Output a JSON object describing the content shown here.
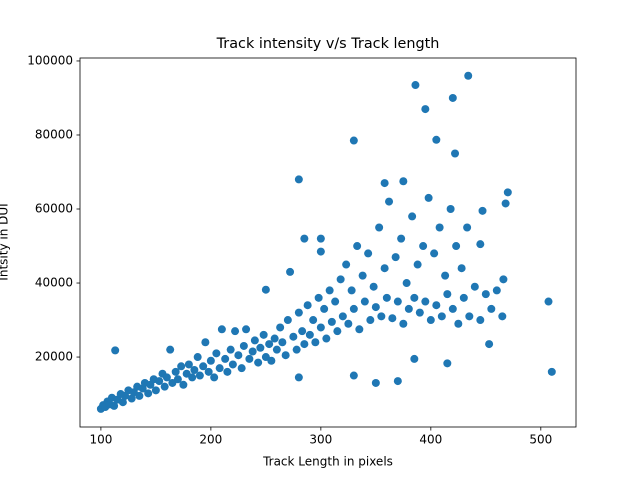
{
  "chart_data": {
    "type": "scatter",
    "title": "Track intensity v/s Track length",
    "x_label": "Track Length in pixels",
    "y_label": "Intsity in DUI",
    "color": "#1f77b4",
    "xlim": [
      81,
      532
    ],
    "ylim": [
      1100,
      100800
    ],
    "xticks": [
      100,
      200,
      300,
      400,
      500
    ],
    "yticks": [
      20000,
      40000,
      60000,
      80000,
      100000
    ],
    "x": [
      100,
      102,
      104,
      106,
      108,
      110,
      112,
      115,
      118,
      120,
      122,
      125,
      128,
      130,
      133,
      135,
      138,
      140,
      143,
      145,
      148,
      150,
      153,
      156,
      158,
      160,
      163,
      165,
      168,
      170,
      173,
      175,
      178,
      180,
      183,
      185,
      188,
      190,
      193,
      195,
      198,
      200,
      203,
      205,
      208,
      210,
      213,
      215,
      218,
      220,
      222,
      225,
      228,
      230,
      232,
      235,
      238,
      240,
      243,
      245,
      248,
      250,
      253,
      255,
      258,
      260,
      263,
      265,
      268,
      270,
      272,
      275,
      278,
      280,
      283,
      285,
      288,
      290,
      293,
      295,
      298,
      300,
      303,
      305,
      308,
      310,
      313,
      315,
      318,
      320,
      323,
      325,
      328,
      330,
      333,
      335,
      338,
      340,
      343,
      345,
      348,
      350,
      353,
      355,
      358,
      360,
      362,
      365,
      368,
      370,
      373,
      375,
      378,
      380,
      383,
      385,
      388,
      390,
      393,
      395,
      398,
      400,
      403,
      405,
      408,
      410,
      413,
      415,
      418,
      420,
      423,
      425,
      428,
      430,
      433,
      435,
      440,
      445,
      450,
      455,
      460,
      465,
      358,
      375,
      386,
      395,
      420,
      434,
      330,
      405,
      422,
      280,
      470,
      468,
      507,
      510,
      453,
      113,
      250,
      350,
      370,
      330,
      280,
      415,
      385,
      466,
      445,
      447,
      285,
      300,
      300
    ],
    "y": [
      6000,
      7000,
      6500,
      8000,
      7200,
      9000,
      6800,
      8500,
      10000,
      7800,
      9500,
      11000,
      8800,
      10500,
      12000,
      9500,
      11500,
      13000,
      10200,
      12500,
      14000,
      11000,
      13500,
      15500,
      12000,
      14500,
      22000,
      13000,
      16000,
      14000,
      17500,
      12500,
      15500,
      18000,
      14500,
      16500,
      20000,
      15000,
      17500,
      24000,
      16000,
      19000,
      14500,
      21000,
      17000,
      27500,
      19500,
      16000,
      22000,
      18000,
      27000,
      20500,
      17000,
      23000,
      27500,
      19500,
      21500,
      24500,
      18500,
      22500,
      26000,
      20000,
      23500,
      19000,
      25000,
      22000,
      28000,
      24000,
      20500,
      30000,
      43000,
      25500,
      22000,
      32000,
      27000,
      23500,
      34000,
      26000,
      30000,
      24000,
      36000,
      28000,
      33000,
      25000,
      38000,
      29500,
      35000,
      27000,
      41000,
      31000,
      45000,
      29000,
      38000,
      33000,
      50000,
      27500,
      42000,
      35000,
      48000,
      30000,
      39000,
      33500,
      55000,
      31000,
      44000,
      36000,
      62000,
      30500,
      47000,
      35000,
      52000,
      29000,
      40000,
      33000,
      58000,
      36000,
      45000,
      32000,
      50000,
      35000,
      63000,
      30000,
      48000,
      34000,
      55000,
      31000,
      42000,
      37000,
      60000,
      33000,
      50000,
      29000,
      44000,
      36000,
      55000,
      31000,
      39000,
      30000,
      37000,
      33000,
      38000,
      31000,
      67000,
      67500,
      93500,
      87000,
      90000,
      96000,
      78500,
      78700,
      75000,
      68000,
      64500,
      61500,
      35000,
      16000,
      23500,
      21800,
      38200,
      13000,
      13500,
      15000,
      14500,
      18300,
      19500,
      41000,
      50500,
      59500,
      52000,
      52000,
      48500
    ]
  }
}
